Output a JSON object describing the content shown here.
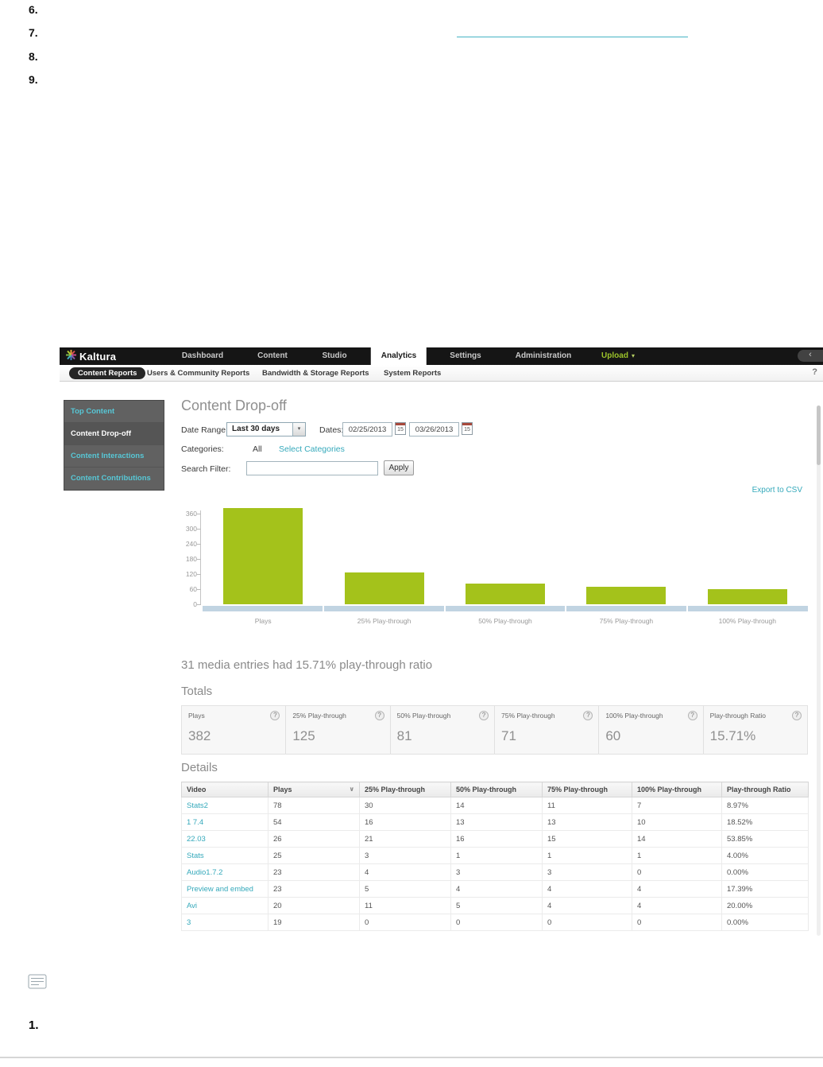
{
  "icons": {
    "chevron_down": "▾",
    "sort_down": "∨",
    "help": "?",
    "collapse": "‹",
    "calendar_day": "15"
  },
  "page": {
    "top_list_numbers": [
      "6.",
      "7.",
      "8.",
      "9."
    ],
    "bottom_step_number": "1."
  },
  "kmc": {
    "logo_text": "Kaltura",
    "nav": {
      "items": [
        "Dashboard",
        "Content",
        "Studio",
        "Analytics",
        "Settings",
        "Administration"
      ],
      "active": "Analytics",
      "upload_label": "Upload"
    },
    "subnav": {
      "items": [
        "Content Reports",
        "Users & Community Reports",
        "Bandwidth & Storage Reports",
        "System Reports"
      ],
      "active": "Content Reports"
    },
    "sidebar": {
      "items": [
        {
          "label": "Top Content",
          "active": false
        },
        {
          "label": "Content Drop-off",
          "active": true
        },
        {
          "label": "Content Interactions",
          "active": false
        },
        {
          "label": "Content Contributions",
          "active": false
        }
      ]
    },
    "report": {
      "title": "Content Drop-off",
      "filters": {
        "date_range_label": "Date Range:",
        "date_range_value": "Last 30 days",
        "dates_label": "Dates:",
        "date_from": "02/25/2013",
        "date_to": "03/26/2013",
        "categories_label": "Categories:",
        "categories_value": "All",
        "select_categories_label": "Select Categories",
        "search_label": "Search Filter:",
        "search_value": "",
        "apply_label": "Apply",
        "export_label": "Export to CSV"
      },
      "summary": "31 media entries had 15.71% play-through ratio",
      "totals_title": "Totals",
      "totals": [
        {
          "label": "Plays",
          "value": "382"
        },
        {
          "label": "25% Play-through",
          "value": "125"
        },
        {
          "label": "50% Play-through",
          "value": "81"
        },
        {
          "label": "75% Play-through",
          "value": "71"
        },
        {
          "label": "100% Play-through",
          "value": "60"
        },
        {
          "label": "Play-through Ratio",
          "value": "15.71%"
        }
      ],
      "details_title": "Details",
      "table": {
        "columns": [
          "Video",
          "Plays",
          "25% Play-through",
          "50% Play-through",
          "75% Play-through",
          "100% Play-through",
          "Play-through Ratio"
        ],
        "sorted_column_index": 1,
        "rows": [
          [
            "Stats2",
            "78",
            "30",
            "14",
            "11",
            "7",
            "8.97%"
          ],
          [
            "1 7.4",
            "54",
            "16",
            "13",
            "13",
            "10",
            "18.52%"
          ],
          [
            "22.03",
            "26",
            "21",
            "16",
            "15",
            "14",
            "53.85%"
          ],
          [
            "Stats",
            "25",
            "3",
            "1",
            "1",
            "1",
            "4.00%"
          ],
          [
            "Audio1.7.2",
            "23",
            "4",
            "3",
            "3",
            "0",
            "0.00%"
          ],
          [
            "Preview and embed",
            "23",
            "5",
            "4",
            "4",
            "4",
            "17.39%"
          ],
          [
            "Avi",
            "20",
            "11",
            "5",
            "4",
            "4",
            "20.00%"
          ],
          [
            "3",
            "19",
            "0",
            "0",
            "0",
            "0",
            "0.00%"
          ]
        ]
      }
    }
  },
  "chart_data": {
    "type": "bar",
    "title": "Content Drop-off",
    "categories": [
      "Plays",
      "25% Play-through",
      "50% Play-through",
      "75% Play-through",
      "100% Play-through"
    ],
    "values": [
      382,
      125,
      81,
      71,
      60
    ],
    "yticks": [
      360,
      300,
      240,
      180,
      120,
      60,
      0
    ],
    "ylim": [
      0,
      390
    ],
    "xlabel": "",
    "ylabel": "",
    "grid": false,
    "legend": false,
    "bar_color": "#a4c21b"
  }
}
